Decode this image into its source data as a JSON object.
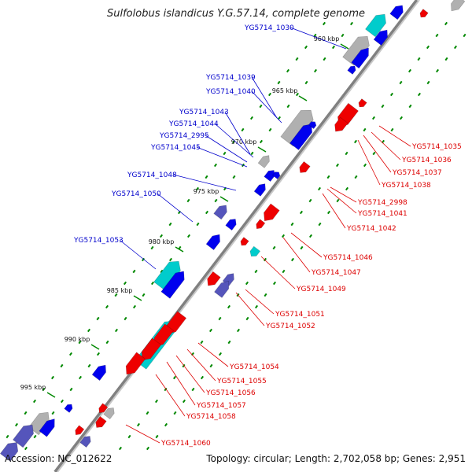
{
  "title": "Sulfolobus islandicus Y.G.57.14, complete genome",
  "footer": {
    "accession": "Accession: NC_012622",
    "topology": "Topology: circular; Length: 2,702,058 bp; Genes: 2,951"
  },
  "colors": {
    "backbone": "#808080",
    "forward_gene": "#0000ee",
    "reverse_gene": "#ee0000",
    "rna_gene": "#00cccc",
    "pseudo_gene": "#b0b0b0",
    "other_gene": "#5555bb",
    "tick": "#008800",
    "blue_label": "#0000cc",
    "red_label": "#dd0000"
  },
  "scale_ticks": [
    "960 kbp",
    "965 kbp",
    "970 kbp",
    "975 kbp",
    "980 kbp",
    "985 kbp",
    "990 kbp",
    "995 kbp"
  ],
  "labels_left": [
    "YG5714_1030",
    "YG5714_1039",
    "YG5714_1040",
    "YG5714_1043",
    "YG5714_1044",
    "YG5714_2995",
    "YG5714_1045",
    "YG5714_1048",
    "YG5714_1050",
    "YG5714_1053"
  ],
  "labels_right": [
    "YG5714_1035",
    "YG5714_1036",
    "YG5714_1037",
    "YG5714_1038",
    "YG5714_2998",
    "YG5714_1041",
    "YG5714_1042",
    "YG5714_1046",
    "YG5714_1047",
    "YG5714_1049",
    "YG5714_1051",
    "YG5714_1052",
    "YG5714_1054",
    "YG5714_1055",
    "YG5714_1056",
    "YG5714_1057",
    "YG5714_1058",
    "YG5714_1060"
  ]
}
